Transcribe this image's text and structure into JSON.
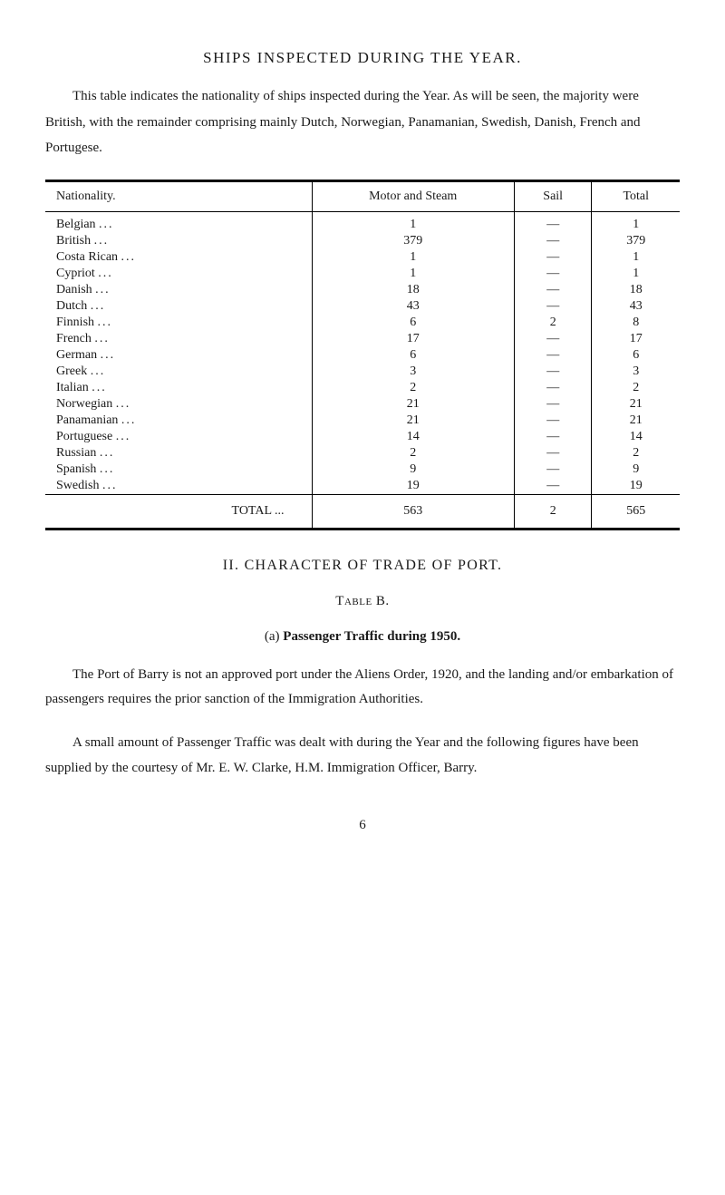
{
  "heading": "SHIPS INSPECTED DURING THE YEAR.",
  "intro": "This table indicates the nationality of ships inspected during the Year. As will be seen, the majority were British, with the remainder comprising mainly Dutch, Norwegian, Panamanian, Swedish, Danish, French and Portugese.",
  "table": {
    "headers": {
      "nationality": "Nationality.",
      "motor": "Motor and Steam",
      "sail": "Sail",
      "total": "Total"
    },
    "rows": [
      {
        "name": "Belgian",
        "motor": "1",
        "sail": "—",
        "total": "1"
      },
      {
        "name": "British",
        "motor": "379",
        "sail": "—",
        "total": "379"
      },
      {
        "name": "Costa Rican",
        "motor": "1",
        "sail": "—",
        "total": "1"
      },
      {
        "name": "Cypriot",
        "motor": "1",
        "sail": "—",
        "total": "1"
      },
      {
        "name": "Danish",
        "motor": "18",
        "sail": "—",
        "total": "18"
      },
      {
        "name": "Dutch",
        "motor": "43",
        "sail": "—",
        "total": "43"
      },
      {
        "name": "Finnish",
        "motor": "6",
        "sail": "2",
        "total": "8"
      },
      {
        "name": "French",
        "motor": "17",
        "sail": "—",
        "total": "17"
      },
      {
        "name": "German",
        "motor": "6",
        "sail": "—",
        "total": "6"
      },
      {
        "name": "Greek",
        "motor": "3",
        "sail": "—",
        "total": "3"
      },
      {
        "name": "Italian",
        "motor": "2",
        "sail": "—",
        "total": "2"
      },
      {
        "name": "Norwegian",
        "motor": "21",
        "sail": "—",
        "total": "21"
      },
      {
        "name": "Panamanian",
        "motor": "21",
        "sail": "—",
        "total": "21"
      },
      {
        "name": "Portuguese",
        "motor": "14",
        "sail": "—",
        "total": "14"
      },
      {
        "name": "Russian",
        "motor": "2",
        "sail": "—",
        "total": "2"
      },
      {
        "name": "Spanish",
        "motor": "9",
        "sail": "—",
        "total": "9"
      },
      {
        "name": "Swedish",
        "motor": "19",
        "sail": "—",
        "total": "19"
      }
    ],
    "totals": {
      "label": "TOTAL   ...",
      "motor": "563",
      "sail": "2",
      "total": "565"
    }
  },
  "section2": {
    "heading": "II.  CHARACTER OF TRADE OF PORT.",
    "table_label": "Table B.",
    "sub": "(a) ",
    "sub_bold": "Passenger Traffic during 1950.",
    "para1": "The Port of Barry is not an approved port under the Aliens Order, 1920, and the landing and/or embarkation of passengers requires the prior sanction of the Immigration Authorities.",
    "para2": "A small amount of Passenger Traffic was dealt with during the Year and the following figures have been supplied by the courtesy of Mr. E. W. Clarke, H.M. Immigration Officer, Barry."
  },
  "page_number": "6"
}
